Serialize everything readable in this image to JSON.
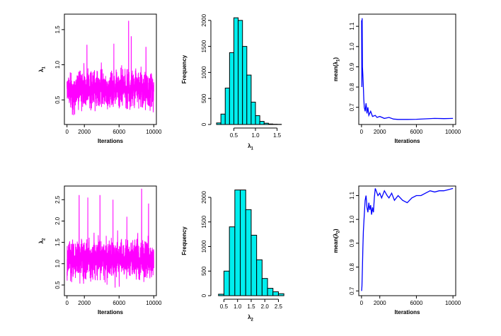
{
  "colors": {
    "trace": "#ff00ff",
    "mean": "#0000ff",
    "bar_fill": "#00eeee",
    "bar_stroke": "#000000"
  },
  "chart_data": [
    {
      "type": "line",
      "panel": "trace-lambda1",
      "title": "",
      "xlabel": "Iterations",
      "ylabel": {
        "base": "λ",
        "sub": "1"
      },
      "xlim": [
        -300,
        10300
      ],
      "ylim": [
        0.15,
        1.72
      ],
      "xticks": [
        0,
        2000,
        6000,
        10000
      ],
      "xtick_labels": [
        "0",
        "2000",
        "6000",
        "10000"
      ],
      "yticks": [
        0.5,
        1.0,
        1.5
      ],
      "ytick_labels": [
        "0.5",
        "1.0",
        "1.5"
      ],
      "seed": 11,
      "trace_level": 0.65,
      "trace_spread": 0.2,
      "trace_min": 0.18,
      "trace_max": 1.3,
      "spikes": [
        [
          7100,
          1.62
        ],
        [
          7400,
          1.4
        ],
        [
          5400,
          1.3
        ],
        [
          2300,
          1.28
        ],
        [
          9100,
          1.25
        ]
      ],
      "color": "#ff00ff"
    },
    {
      "type": "bar",
      "panel": "hist-lambda1",
      "title": "",
      "xlabel": {
        "base": "λ",
        "sub": "1"
      },
      "ylabel": "Frequency",
      "bin_start": 0.1,
      "bin_width": 0.1,
      "values": [
        30,
        200,
        700,
        1380,
        2050,
        2000,
        1500,
        950,
        430,
        170,
        60,
        25,
        10,
        5,
        3
      ],
      "xlim": [
        0.05,
        1.72
      ],
      "ylim": [
        0,
        2120
      ],
      "xticks": [
        0.5,
        1.0,
        1.5
      ],
      "xtick_labels": [
        "0.5",
        "1.0",
        "1.5"
      ],
      "yticks": [
        0,
        500,
        1000,
        1500,
        2000
      ],
      "ytick_labels": [
        "0",
        "500",
        "1000",
        "1500",
        "2000"
      ],
      "color": "#00eeee"
    },
    {
      "type": "line",
      "panel": "mean-lambda1",
      "title": "",
      "xlabel": "Iterations",
      "ylabel": {
        "base": "mean(λ",
        "sub": "1",
        "suffix": ")"
      },
      "xlim": [
        -300,
        10300
      ],
      "ylim": [
        0.615,
        1.16
      ],
      "xticks": [
        0,
        2000,
        6000,
        10000
      ],
      "xtick_labels": [
        "0",
        "2000",
        "6000",
        "10000"
      ],
      "yticks": [
        0.7,
        0.8,
        0.9,
        1.0,
        1.1
      ],
      "ytick_labels": [
        "0.7",
        "0.8",
        "0.9",
        "1.0",
        "1.1"
      ],
      "x": [
        10,
        40,
        70,
        100,
        150,
        200,
        250,
        300,
        400,
        500,
        600,
        700,
        800,
        1000,
        1200,
        1500,
        1700,
        2000,
        2500,
        3000,
        3500,
        4000,
        5000,
        6000,
        7000,
        8000,
        9000,
        10000
      ],
      "y": [
        1.13,
        0.8,
        1.14,
        0.9,
        0.86,
        0.8,
        0.74,
        0.7,
        0.68,
        0.72,
        0.67,
        0.7,
        0.66,
        0.68,
        0.655,
        0.66,
        0.65,
        0.655,
        0.645,
        0.65,
        0.642,
        0.64,
        0.64,
        0.641,
        0.643,
        0.645,
        0.644,
        0.645
      ],
      "color": "#0000ff"
    },
    {
      "type": "line",
      "panel": "trace-lambda2",
      "title": "",
      "xlabel": "Iterations",
      "ylabel": {
        "base": "λ",
        "sub": "2"
      },
      "xlim": [
        -300,
        10300
      ],
      "ylim": [
        0.25,
        2.82
      ],
      "xticks": [
        0,
        2000,
        6000,
        10000
      ],
      "xtick_labels": [
        "0",
        "2000",
        "6000",
        "10000"
      ],
      "yticks": [
        0.5,
        1.0,
        1.5,
        2.0,
        2.5
      ],
      "ytick_labels": [
        "0.5",
        "1.0",
        "1.5",
        "2.0",
        "2.5"
      ],
      "seed": 29,
      "trace_level": 1.1,
      "trace_spread": 0.35,
      "trace_min": 0.3,
      "trace_max": 1.9,
      "spikes": [
        [
          8600,
          2.75
        ],
        [
          1400,
          2.6
        ],
        [
          3800,
          2.6
        ],
        [
          2400,
          2.55
        ],
        [
          5300,
          2.5
        ],
        [
          9400,
          2.4
        ],
        [
          6900,
          2.1
        ]
      ],
      "color": "#ff00ff"
    },
    {
      "type": "bar",
      "panel": "hist-lambda2",
      "title": "",
      "xlabel": {
        "base": "λ",
        "sub": "2"
      },
      "ylabel": "Frequency",
      "bin_start": 0.3,
      "bin_width": 0.2,
      "values": [
        30,
        500,
        1400,
        2150,
        2150,
        1750,
        1230,
        730,
        350,
        150,
        80,
        40
      ],
      "xlim": [
        0.15,
        2.8
      ],
      "ylim": [
        0,
        2230
      ],
      "xticks": [
        0.5,
        1.0,
        1.5,
        2.0,
        2.5
      ],
      "xtick_labels": [
        "0.5",
        "1.0",
        "1.5",
        "2.0",
        "2.5"
      ],
      "yticks": [
        0,
        500,
        1000,
        1500,
        2000
      ],
      "ytick_labels": [
        "0",
        "500",
        "1000",
        "1500",
        "2000"
      ],
      "color": "#00eeee"
    },
    {
      "type": "line",
      "panel": "mean-lambda2",
      "title": "",
      "xlabel": "Iterations",
      "ylabel": {
        "base": "mean(λ",
        "sub": "2",
        "suffix": ")"
      },
      "xlim": [
        -300,
        10300
      ],
      "ylim": [
        0.68,
        1.14
      ],
      "xticks": [
        0,
        2000,
        6000,
        10000
      ],
      "xtick_labels": [
        "0",
        "2000",
        "6000",
        "10000"
      ],
      "yticks": [
        0.7,
        0.8,
        0.9,
        1.0,
        1.1
      ],
      "ytick_labels": [
        "0.7",
        "0.8",
        "0.9",
        "1.0",
        "1.1"
      ],
      "x": [
        10,
        50,
        100,
        150,
        200,
        300,
        400,
        500,
        600,
        700,
        800,
        900,
        1000,
        1100,
        1200,
        1300,
        1400,
        1500,
        1600,
        1800,
        2000,
        2200,
        2500,
        2800,
        3000,
        3300,
        3600,
        4000,
        4500,
        5000,
        5500,
        6000,
        6500,
        7000,
        7500,
        8000,
        8500,
        9000,
        9500,
        10000
      ],
      "y": [
        0.7,
        0.72,
        0.8,
        0.88,
        0.95,
        1.02,
        1.08,
        1.1,
        1.05,
        1.03,
        1.07,
        1.04,
        1.06,
        1.02,
        1.05,
        1.03,
        1.09,
        1.13,
        1.12,
        1.1,
        1.11,
        1.09,
        1.12,
        1.1,
        1.09,
        1.11,
        1.08,
        1.1,
        1.08,
        1.07,
        1.09,
        1.1,
        1.1,
        1.11,
        1.12,
        1.115,
        1.12,
        1.12,
        1.125,
        1.13
      ],
      "color": "#0000ff"
    }
  ]
}
